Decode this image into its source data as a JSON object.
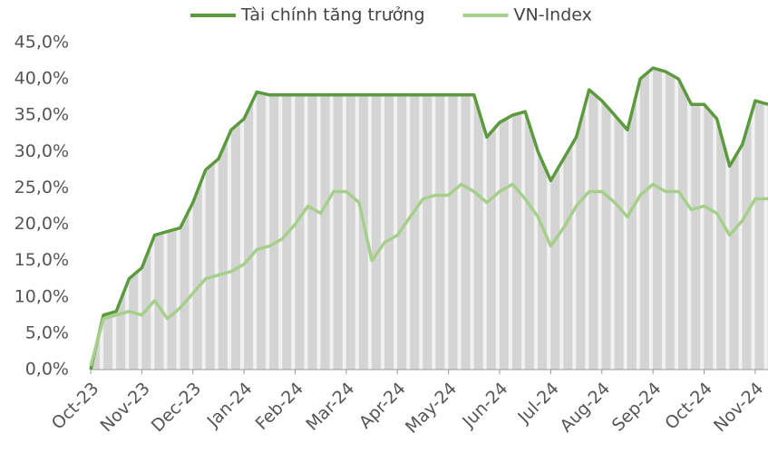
{
  "chart_data": {
    "type": "line",
    "categories": [
      "Oct-23",
      null,
      null,
      null,
      "Nov-23",
      null,
      null,
      null,
      "Dec-23",
      null,
      null,
      null,
      "Jan-24",
      null,
      null,
      null,
      "Feb-24",
      null,
      null,
      null,
      "Mar-24",
      null,
      null,
      null,
      "Apr-24",
      null,
      null,
      null,
      "May-24",
      null,
      null,
      null,
      "Jun-24",
      null,
      null,
      null,
      "Jul-24",
      null,
      null,
      null,
      "Aug-24",
      null,
      null,
      null,
      "Sep-24",
      null,
      null,
      null,
      "Oct-24",
      null,
      null,
      null,
      "Nov-24",
      null
    ],
    "series": [
      {
        "name": "Tài chính tăng trưởng",
        "color": "#5b9a3e",
        "area": true,
        "values": [
          0,
          7.5,
          8,
          12.5,
          14,
          18.5,
          19,
          19.5,
          23,
          27.5,
          29,
          33,
          34.5,
          38.2,
          37.8,
          37.8,
          37.8,
          37.8,
          37.8,
          37.8,
          37.8,
          37.8,
          37.8,
          37.8,
          37.8,
          37.8,
          37.8,
          37.8,
          37.8,
          37.8,
          37.8,
          32,
          34,
          35,
          35.5,
          30,
          26,
          29,
          32,
          38.5,
          37,
          35,
          33,
          40,
          41.5,
          41,
          40,
          36.5,
          36.5,
          34.5,
          28,
          31,
          37,
          36.5
        ]
      },
      {
        "name": "VN-Index",
        "color": "#a6cf8c",
        "values": [
          0.5,
          7,
          7.5,
          8,
          7.5,
          9.5,
          7,
          8.5,
          10.5,
          12.5,
          13,
          13.5,
          14.5,
          16.5,
          17,
          18,
          20,
          22.5,
          21.5,
          24.5,
          24.5,
          23,
          15,
          17.5,
          18.5,
          21,
          23.5,
          24,
          24,
          25.5,
          24.5,
          23,
          24.5,
          25.5,
          23.5,
          21,
          17,
          19.5,
          22.5,
          24.5,
          24.5,
          23,
          21,
          24,
          25.5,
          24.5,
          24.5,
          22,
          22.5,
          21.5,
          18.5,
          20.5,
          23.5,
          23.5
        ]
      }
    ],
    "ylim": [
      0,
      45
    ],
    "yticks": [
      {
        "value": 0,
        "label": "0,0%"
      },
      {
        "value": 5,
        "label": "5,0%"
      },
      {
        "value": 10,
        "label": "10,0%"
      },
      {
        "value": 15,
        "label": "15,0%"
      },
      {
        "value": 20,
        "label": "20,0%"
      },
      {
        "value": 25,
        "label": "25,0%"
      },
      {
        "value": 30,
        "label": "30,0%"
      },
      {
        "value": 35,
        "label": "35,0%"
      },
      {
        "value": 40,
        "label": "40,0%"
      },
      {
        "value": 45,
        "label": "45,0%"
      }
    ],
    "legend": "top"
  }
}
